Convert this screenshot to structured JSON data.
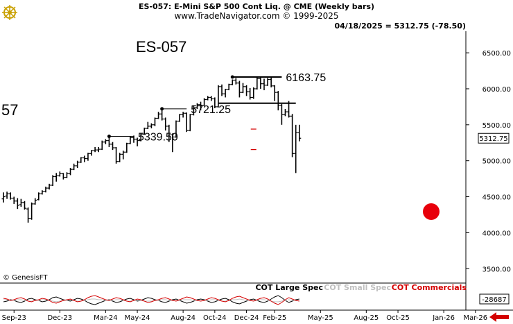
{
  "header": {
    "line1": "ES-057:  E-Mini S&P 500 Cont Liq. @ CME  (Weekly bars)",
    "line2": "www.TradeNavigator.com © 1999-2025",
    "quote": "04/18/2025 = 5312.75 (-78.50)"
  },
  "symbol_label": "ES-057",
  "left_edge_label": "57",
  "copyright": "© GenesisFT",
  "last_price_tag": "5312.75",
  "cot_value_tag": "-28687",
  "cot_legend": {
    "large": "COT Large Spec",
    "small": "COT Small Spec",
    "commercials": "COT Commercials"
  },
  "colors": {
    "background": "#ffffff",
    "bar": "#000000",
    "cot_large": "#000000",
    "cot_small": "#c0c0c0",
    "cot_commercials": "#d40000",
    "red_dot": "#e8000b",
    "right_arrow": "#d40000"
  },
  "chart_data": {
    "type": "ohlc",
    "title": "ES-057:  E-Mini S&P 500 Cont Liq. @ CME  (Weekly bars)",
    "ylim": [
      3300,
      6800
    ],
    "yticks": [
      3500,
      4000,
      4500,
      5000,
      5500,
      6000,
      6500
    ],
    "ytick_labels": [
      "3500.00",
      "4000.00",
      "4500.00",
      "5000.00",
      "5500.00",
      "6000.00",
      "6500.00"
    ],
    "xticks": [
      {
        "date": "2023-09-25",
        "label": "Sep-23"
      },
      {
        "date": "2023-12-25",
        "label": "Dec-23"
      },
      {
        "date": "2024-03-25",
        "label": "Mar-24"
      },
      {
        "date": "2024-05-27",
        "label": "May-24"
      },
      {
        "date": "2024-08-26",
        "label": "Aug-24"
      },
      {
        "date": "2024-10-28",
        "label": "Oct-24"
      },
      {
        "date": "2024-12-30",
        "label": "Dec-24"
      },
      {
        "date": "2025-02-24",
        "label": "Feb-25"
      },
      {
        "date": "2025-05-26",
        "label": "May-25"
      },
      {
        "date": "2025-08-25",
        "label": "Aug-25"
      },
      {
        "date": "2025-10-27",
        "label": "Oct-25"
      },
      {
        "date": "2026-01-26",
        "label": "Jan-26"
      },
      {
        "date": "2026-03-30",
        "label": "Mar-26"
      }
    ],
    "x_start": "2023-09-04",
    "x_end": "2026-04-13",
    "bars": [
      {
        "date": "2023-09-04",
        "o": 4470,
        "h": 4560,
        "l": 4420,
        "c": 4500
      },
      {
        "date": "2023-09-11",
        "o": 4510,
        "h": 4570,
        "l": 4470,
        "c": 4540
      },
      {
        "date": "2023-09-18",
        "o": 4540,
        "h": 4560,
        "l": 4460,
        "c": 4480
      },
      {
        "date": "2023-09-25",
        "o": 4480,
        "h": 4500,
        "l": 4400,
        "c": 4440
      },
      {
        "date": "2023-10-02",
        "o": 4440,
        "h": 4480,
        "l": 4330,
        "c": 4380
      },
      {
        "date": "2023-10-09",
        "o": 4390,
        "h": 4470,
        "l": 4360,
        "c": 4420
      },
      {
        "date": "2023-10-16",
        "o": 4420,
        "h": 4440,
        "l": 4320,
        "c": 4340
      },
      {
        "date": "2023-10-23",
        "o": 4330,
        "h": 4350,
        "l": 4140,
        "c": 4200
      },
      {
        "date": "2023-10-30",
        "o": 4200,
        "h": 4420,
        "l": 4180,
        "c": 4400
      },
      {
        "date": "2023-11-06",
        "o": 4400,
        "h": 4480,
        "l": 4390,
        "c": 4450
      },
      {
        "date": "2023-11-13",
        "o": 4460,
        "h": 4560,
        "l": 4450,
        "c": 4540
      },
      {
        "date": "2023-11-20",
        "o": 4540,
        "h": 4590,
        "l": 4530,
        "c": 4570
      },
      {
        "date": "2023-11-27",
        "o": 4570,
        "h": 4640,
        "l": 4560,
        "c": 4620
      },
      {
        "date": "2023-12-04",
        "o": 4620,
        "h": 4680,
        "l": 4600,
        "c": 4660
      },
      {
        "date": "2023-12-11",
        "o": 4660,
        "h": 4800,
        "l": 4650,
        "c": 4780
      },
      {
        "date": "2023-12-18",
        "o": 4780,
        "h": 4830,
        "l": 4710,
        "c": 4790
      },
      {
        "date": "2023-12-25",
        "o": 4790,
        "h": 4850,
        "l": 4780,
        "c": 4820
      },
      {
        "date": "2024-01-01",
        "o": 4820,
        "h": 4830,
        "l": 4740,
        "c": 4770
      },
      {
        "date": "2024-01-08",
        "o": 4770,
        "h": 4840,
        "l": 4760,
        "c": 4820
      },
      {
        "date": "2024-01-15",
        "o": 4820,
        "h": 4900,
        "l": 4800,
        "c": 4880
      },
      {
        "date": "2024-01-22",
        "o": 4880,
        "h": 4960,
        "l": 4870,
        "c": 4930
      },
      {
        "date": "2024-01-29",
        "o": 4930,
        "h": 5000,
        "l": 4900,
        "c": 4980
      },
      {
        "date": "2024-02-05",
        "o": 4980,
        "h": 5050,
        "l": 4970,
        "c": 5040
      },
      {
        "date": "2024-02-12",
        "o": 5040,
        "h": 5070,
        "l": 4980,
        "c": 5030
      },
      {
        "date": "2024-02-19",
        "o": 5030,
        "h": 5110,
        "l": 5000,
        "c": 5100
      },
      {
        "date": "2024-02-26",
        "o": 5100,
        "h": 5150,
        "l": 5070,
        "c": 5140
      },
      {
        "date": "2024-03-04",
        "o": 5140,
        "h": 5190,
        "l": 5120,
        "c": 5150
      },
      {
        "date": "2024-03-11",
        "o": 5150,
        "h": 5190,
        "l": 5120,
        "c": 5160
      },
      {
        "date": "2024-03-18",
        "o": 5160,
        "h": 5280,
        "l": 5150,
        "c": 5260
      },
      {
        "date": "2024-03-25",
        "o": 5260,
        "h": 5300,
        "l": 5230,
        "c": 5280
      },
      {
        "date": "2024-04-01",
        "o": 5280,
        "h": 5340,
        "l": 5190,
        "c": 5230
      },
      {
        "date": "2024-04-08",
        "o": 5230,
        "h": 5260,
        "l": 5150,
        "c": 5180
      },
      {
        "date": "2024-04-15",
        "o": 5180,
        "h": 5190,
        "l": 4960,
        "c": 4990
      },
      {
        "date": "2024-04-22",
        "o": 4990,
        "h": 5110,
        "l": 4980,
        "c": 5090
      },
      {
        "date": "2024-04-29",
        "o": 5090,
        "h": 5140,
        "l": 5020,
        "c": 5120
      },
      {
        "date": "2024-05-06",
        "o": 5120,
        "h": 5250,
        "l": 5110,
        "c": 5240
      },
      {
        "date": "2024-05-13",
        "o": 5240,
        "h": 5340,
        "l": 5230,
        "c": 5320
      },
      {
        "date": "2024-05-20",
        "o": 5320,
        "h": 5350,
        "l": 5250,
        "c": 5300
      },
      {
        "date": "2024-05-27",
        "o": 5300,
        "h": 5320,
        "l": 5200,
        "c": 5280
      },
      {
        "date": "2024-06-03",
        "o": 5280,
        "h": 5380,
        "l": 5270,
        "c": 5370
      },
      {
        "date": "2024-06-10",
        "o": 5370,
        "h": 5460,
        "l": 5360,
        "c": 5450
      },
      {
        "date": "2024-06-17",
        "o": 5450,
        "h": 5540,
        "l": 5440,
        "c": 5480
      },
      {
        "date": "2024-06-24",
        "o": 5480,
        "h": 5520,
        "l": 5450,
        "c": 5500
      },
      {
        "date": "2024-07-01",
        "o": 5500,
        "h": 5600,
        "l": 5480,
        "c": 5590
      },
      {
        "date": "2024-07-08",
        "o": 5590,
        "h": 5680,
        "l": 5580,
        "c": 5650
      },
      {
        "date": "2024-07-15",
        "o": 5650,
        "h": 5721,
        "l": 5560,
        "c": 5580
      },
      {
        "date": "2024-07-22",
        "o": 5580,
        "h": 5600,
        "l": 5420,
        "c": 5480
      },
      {
        "date": "2024-07-29",
        "o": 5480,
        "h": 5500,
        "l": 5260,
        "c": 5360
      },
      {
        "date": "2024-08-05",
        "o": 5360,
        "h": 5380,
        "l": 5120,
        "c": 5330
      },
      {
        "date": "2024-08-12",
        "o": 5330,
        "h": 5560,
        "l": 5320,
        "c": 5550
      },
      {
        "date": "2024-08-19",
        "o": 5550,
        "h": 5650,
        "l": 5540,
        "c": 5640
      },
      {
        "date": "2024-08-26",
        "o": 5640,
        "h": 5680,
        "l": 5600,
        "c": 5660
      },
      {
        "date": "2024-09-02",
        "o": 5660,
        "h": 5670,
        "l": 5400,
        "c": 5420
      },
      {
        "date": "2024-09-09",
        "o": 5420,
        "h": 5650,
        "l": 5410,
        "c": 5640
      },
      {
        "date": "2024-09-16",
        "o": 5640,
        "h": 5770,
        "l": 5630,
        "c": 5740
      },
      {
        "date": "2024-09-23",
        "o": 5740,
        "h": 5800,
        "l": 5720,
        "c": 5780
      },
      {
        "date": "2024-09-30",
        "o": 5780,
        "h": 5820,
        "l": 5700,
        "c": 5770
      },
      {
        "date": "2024-10-07",
        "o": 5770,
        "h": 5870,
        "l": 5760,
        "c": 5850
      },
      {
        "date": "2024-10-14",
        "o": 5850,
        "h": 5900,
        "l": 5840,
        "c": 5880
      },
      {
        "date": "2024-10-21",
        "o": 5880,
        "h": 5900,
        "l": 5830,
        "c": 5860
      },
      {
        "date": "2024-10-28",
        "o": 5860,
        "h": 5880,
        "l": 5730,
        "c": 5750
      },
      {
        "date": "2024-11-04",
        "o": 5750,
        "h": 6050,
        "l": 5740,
        "c": 6030
      },
      {
        "date": "2024-11-11",
        "o": 6030,
        "h": 6060,
        "l": 5900,
        "c": 5930
      },
      {
        "date": "2024-11-18",
        "o": 5930,
        "h": 6000,
        "l": 5880,
        "c": 5990
      },
      {
        "date": "2024-11-25",
        "o": 5990,
        "h": 6070,
        "l": 5980,
        "c": 6060
      },
      {
        "date": "2024-12-02",
        "o": 6060,
        "h": 6130,
        "l": 6050,
        "c": 6120
      },
      {
        "date": "2024-12-09",
        "o": 6120,
        "h": 6150,
        "l": 6060,
        "c": 6080
      },
      {
        "date": "2024-12-16",
        "o": 6080,
        "h": 6110,
        "l": 5880,
        "c": 5950
      },
      {
        "date": "2024-12-23",
        "o": 5950,
        "h": 6080,
        "l": 5940,
        "c": 6030
      },
      {
        "date": "2024-12-30",
        "o": 6030,
        "h": 6050,
        "l": 5900,
        "c": 5960
      },
      {
        "date": "2025-01-06",
        "o": 5960,
        "h": 6010,
        "l": 5850,
        "c": 5880
      },
      {
        "date": "2025-01-13",
        "o": 5880,
        "h": 6020,
        "l": 5860,
        "c": 6000
      },
      {
        "date": "2025-01-20",
        "o": 6000,
        "h": 6163.75,
        "l": 5990,
        "c": 6140
      },
      {
        "date": "2025-01-27",
        "o": 6140,
        "h": 6160,
        "l": 6000,
        "c": 6070
      },
      {
        "date": "2025-02-03",
        "o": 6070,
        "h": 6140,
        "l": 5980,
        "c": 6050
      },
      {
        "date": "2025-02-10",
        "o": 6050,
        "h": 6150,
        "l": 6040,
        "c": 6130
      },
      {
        "date": "2025-02-17",
        "o": 6130,
        "h": 6160,
        "l": 6020,
        "c": 6040
      },
      {
        "date": "2025-02-24",
        "o": 6040,
        "h": 6050,
        "l": 5830,
        "c": 5950
      },
      {
        "date": "2025-03-03",
        "o": 5950,
        "h": 5970,
        "l": 5700,
        "c": 5770
      },
      {
        "date": "2025-03-10",
        "o": 5770,
        "h": 5790,
        "l": 5500,
        "c": 5640
      },
      {
        "date": "2025-03-17",
        "o": 5640,
        "h": 5720,
        "l": 5620,
        "c": 5680
      },
      {
        "date": "2025-03-24",
        "o": 5680,
        "h": 5830,
        "l": 5600,
        "c": 5620
      },
      {
        "date": "2025-03-31",
        "o": 5620,
        "h": 5650,
        "l": 5050,
        "c": 5100
      },
      {
        "date": "2025-04-07",
        "o": 5100,
        "h": 5500,
        "l": 4830,
        "c": 5390
      },
      {
        "date": "2025-04-14",
        "o": 5390,
        "h": 5500,
        "l": 5270,
        "c": 5312.75
      }
    ],
    "annotations": [
      {
        "label": "6163.75",
        "value": 6163.75,
        "from": "2024-12-02",
        "to": "2025-03-10"
      },
      {
        "label": "5721.25",
        "value": 5721.25,
        "from": "2024-07-15",
        "to": "2024-09-02"
      },
      {
        "label": "5339.50",
        "value": 5339.5,
        "from": "2024-04-01",
        "to": "2024-05-20"
      }
    ],
    "support_level": {
      "value": 5800,
      "from": "2024-11-04",
      "to": "2025-04-07"
    },
    "red_ticks": [
      {
        "date": "2025-01-13",
        "value": 5440
      },
      {
        "date": "2025-01-13",
        "value": 5155
      }
    ],
    "cot": {
      "ylim": [
        -1,
        1
      ],
      "last_value": -28687,
      "series": [
        {
          "name": "COT Large Spec",
          "key": "large",
          "values": [
            -0.2,
            -0.1,
            0.1,
            0.0,
            -0.2,
            -0.3,
            -0.1,
            0.2,
            0.3,
            0.1,
            0.0,
            -0.2,
            -0.1,
            0.1,
            0.4,
            0.5,
            0.3,
            0.1,
            0.0,
            -0.1,
            0.1,
            0.3,
            0.2,
            0.0,
            -0.3,
            -0.5,
            -0.6,
            -0.4,
            -0.2,
            0.0,
            0.1,
            -0.1,
            -0.3,
            -0.2,
            0.0,
            0.2,
            0.3,
            0.1,
            -0.1,
            0.0,
            0.2,
            0.4,
            0.3,
            0.1,
            0.0,
            -0.2,
            -0.3,
            -0.1,
            0.1,
            0.2,
            0.0,
            -0.2,
            -0.4,
            -0.3,
            -0.1,
            0.1,
            0.2,
            0.1,
            -0.1,
            -0.3,
            -0.2,
            0.0,
            0.2,
            0.3,
            0.1,
            -0.2,
            -0.4,
            -0.5,
            -0.3,
            -0.1,
            0.1,
            0.2,
            0.0,
            -0.2,
            -0.3,
            -0.1,
            0.2,
            0.5,
            0.7,
            0.4,
            0.0,
            -0.3,
            -0.1,
            0.1,
            0.2
          ]
        },
        {
          "name": "COT Small Spec",
          "key": "small",
          "values": [
            0.1,
            0.1,
            0.0,
            0.0,
            0.1,
            0.1,
            0.0,
            -0.1,
            -0.1,
            0.0,
            0.0,
            0.1,
            0.1,
            0.0,
            -0.1,
            -0.2,
            -0.1,
            0.0,
            0.0,
            0.1,
            0.0,
            -0.1,
            -0.1,
            0.0,
            0.1,
            0.2,
            0.2,
            0.1,
            0.1,
            0.0,
            0.0,
            0.0,
            0.1,
            0.1,
            0.0,
            -0.1,
            -0.1,
            0.0,
            0.0,
            0.0,
            -0.1,
            -0.1,
            -0.1,
            0.0,
            0.0,
            0.1,
            0.1,
            0.0,
            0.0,
            -0.1,
            0.0,
            0.1,
            0.1,
            0.1,
            0.0,
            0.0,
            -0.1,
            0.0,
            0.0,
            0.1,
            0.1,
            0.0,
            -0.1,
            -0.1,
            0.0,
            0.1,
            0.1,
            0.2,
            0.1,
            0.0,
            0.0,
            -0.1,
            0.0,
            0.1,
            0.1,
            0.0,
            -0.1,
            -0.2,
            -0.2,
            -0.1,
            0.0,
            0.1,
            0.0,
            0.0,
            -0.1
          ]
        },
        {
          "name": "COT Commercials",
          "key": "commercials",
          "values": [
            0.3,
            0.2,
            0.0,
            0.1,
            0.3,
            0.4,
            0.2,
            -0.1,
            -0.2,
            0.0,
            0.1,
            0.3,
            0.2,
            0.0,
            -0.3,
            -0.4,
            -0.2,
            0.0,
            0.1,
            0.2,
            0.0,
            -0.2,
            -0.1,
            0.1,
            0.4,
            0.6,
            0.7,
            0.5,
            0.3,
            0.1,
            0.0,
            0.2,
            0.4,
            0.3,
            0.1,
            -0.1,
            -0.2,
            0.0,
            0.2,
            0.1,
            -0.1,
            -0.3,
            -0.2,
            0.0,
            0.1,
            0.3,
            0.4,
            0.2,
            0.0,
            -0.1,
            0.1,
            0.3,
            0.5,
            0.4,
            0.2,
            0.0,
            -0.1,
            0.0,
            0.2,
            0.4,
            0.3,
            0.1,
            -0.1,
            -0.2,
            0.0,
            0.3,
            0.5,
            0.6,
            0.4,
            0.2,
            0.0,
            -0.1,
            0.1,
            0.3,
            0.4,
            0.2,
            -0.1,
            -0.4,
            -0.6,
            -0.3,
            0.1,
            0.4,
            0.2,
            0.0,
            -0.1
          ]
        }
      ]
    }
  }
}
